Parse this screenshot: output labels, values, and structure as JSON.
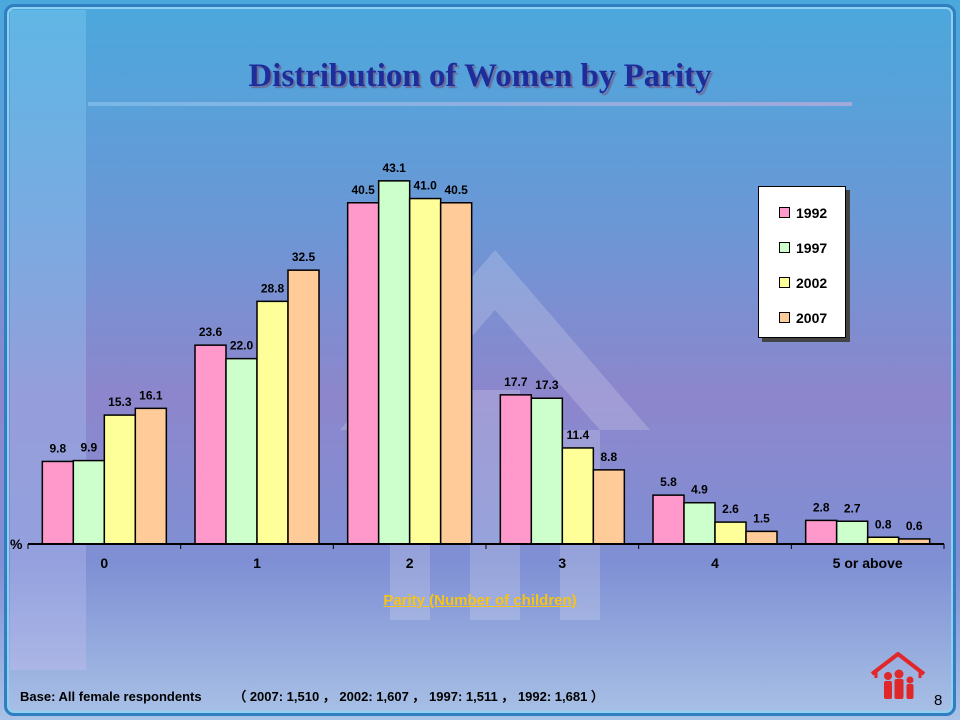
{
  "slide": {
    "title": "Distribution of Women by Parity",
    "footnote": {
      "base_label": "Base: All female respondents",
      "detail": "（ 2007: 1,510 ， 2002: 1,607 ， 1997: 1,511 ， 1992: 1,681 ）"
    },
    "page_number": "8"
  },
  "chart_data": {
    "type": "bar",
    "title": "Distribution of Women by Parity",
    "xlabel": "Parity (Number of children)",
    "ylabel": "%",
    "categories": [
      "0",
      "1",
      "2",
      "3",
      "4",
      "5 or above"
    ],
    "series": [
      {
        "name": "1992",
        "color": "#ff99cc",
        "values": [
          9.8,
          23.6,
          40.5,
          17.7,
          5.8,
          2.8
        ]
      },
      {
        "name": "1997",
        "color": "#ccffcc",
        "values": [
          9.9,
          22.0,
          43.1,
          17.3,
          4.9,
          2.7
        ]
      },
      {
        "name": "2002",
        "color": "#ffff99",
        "values": [
          15.3,
          28.8,
          41.0,
          11.4,
          2.6,
          0.8
        ]
      },
      {
        "name": "2007",
        "color": "#ffcc99",
        "values": [
          16.1,
          32.5,
          40.5,
          8.8,
          1.5,
          0.6
        ]
      }
    ],
    "ylim": [
      0,
      47
    ],
    "grid": false,
    "legend_position": "top-right",
    "value_labels": true
  }
}
